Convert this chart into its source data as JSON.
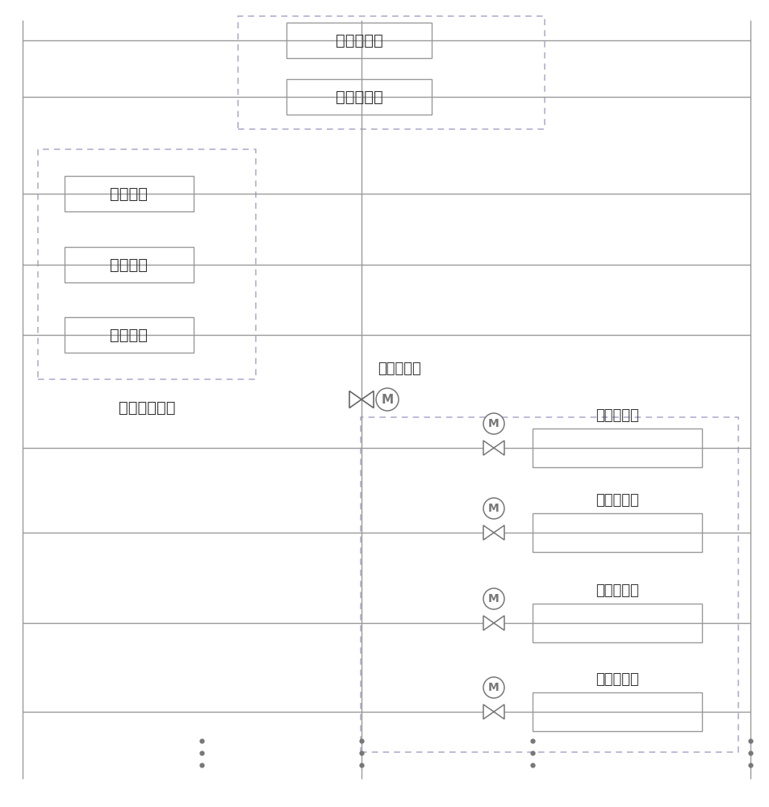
{
  "bg_color": "#ffffff",
  "line_color": "#999999",
  "dashed_box_color": "#aaaacc",
  "box_border_color": "#999999",
  "box_fill": "#ffffff",
  "text_color": "#333333",
  "main_devices": [
    "主机设备一",
    "主机设备一"
  ],
  "vf_pumps": [
    "变频泵一",
    "变频泵二",
    "变频泵三"
  ],
  "end_devices": [
    "末端设备一",
    "末端设备二",
    "末端设备三",
    "末端设备四"
  ],
  "label_binglianbianpinzu": "并联变频泵组",
  "label_diandongtiaojiefa": "电动调节阀",
  "font_size": 14,
  "small_font_size": 12,
  "valve_label_fontsize": 11
}
